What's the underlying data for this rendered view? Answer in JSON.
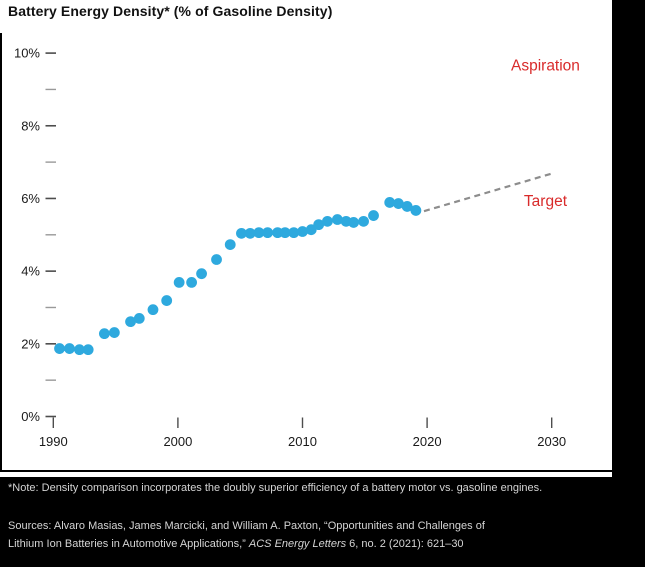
{
  "title": "Battery Energy Density* (% of Gasoline Density)",
  "colors": {
    "dot_blue": "#2ea9de",
    "label_red": "#d92b2b",
    "dash_gray": "#8d8d8d",
    "tick_major": "#4d4d4d",
    "tick_minor": "#999999",
    "card_white": "#ffffff",
    "band_black": "#000000"
  },
  "footnotes": {
    "note": "*Note: Density comparison incorporates the doubly superior efficiency of a battery motor vs. gasoline engines.",
    "source_line1": "Sources: Alvaro Masias, James Marcicki, and William A. Paxton, “Opportunities and Challenges of",
    "source_line2_prefix": "Lithium Ion Batteries in Automotive Applications,” ",
    "source_journal_italic": "ACS Energy Letters",
    "source_line2_suffix": " 6, no. 2 (2021): 621–30"
  },
  "chart_data": {
    "type": "scatter",
    "title": "Battery Energy Density* (% of Gasoline Density)",
    "xlabel": "",
    "ylabel": "",
    "xlim": [
      1990,
      2034.5
    ],
    "ylim": [
      0,
      10.5
    ],
    "grid": false,
    "x_ticks": [
      1990,
      2000,
      2010,
      2020,
      2030
    ],
    "x_tick_labels": [
      "1990",
      "2000",
      "2010",
      "2020",
      "2030"
    ],
    "y_major_ticks": [
      0,
      2,
      4,
      6,
      8,
      10
    ],
    "y_major_labels": [
      "0%",
      "2%",
      "4%",
      "6%",
      "8%",
      "10%"
    ],
    "y_minor_ticks": [
      1,
      3,
      5,
      7,
      9
    ],
    "series": [
      {
        "name": "Battery energy density as % of gasoline density",
        "points": [
          [
            1990.5,
            1.87
          ],
          [
            1991.3,
            1.87
          ],
          [
            1992.1,
            1.84
          ],
          [
            1992.8,
            1.84
          ],
          [
            1994.1,
            2.28
          ],
          [
            1994.9,
            2.31
          ],
          [
            1996.2,
            2.61
          ],
          [
            1996.9,
            2.7
          ],
          [
            1998.0,
            2.94
          ],
          [
            1999.1,
            3.19
          ],
          [
            2000.1,
            3.69
          ],
          [
            2001.1,
            3.69
          ],
          [
            2001.9,
            3.93
          ],
          [
            2003.1,
            4.32
          ],
          [
            2004.2,
            4.73
          ],
          [
            2005.1,
            5.04
          ],
          [
            2005.8,
            5.04
          ],
          [
            2006.5,
            5.06
          ],
          [
            2007.2,
            5.06
          ],
          [
            2008.0,
            5.06
          ],
          [
            2008.6,
            5.06
          ],
          [
            2009.3,
            5.06
          ],
          [
            2010.0,
            5.09
          ],
          [
            2010.7,
            5.14
          ],
          [
            2011.3,
            5.28
          ],
          [
            2012.0,
            5.37
          ],
          [
            2012.8,
            5.42
          ],
          [
            2013.5,
            5.37
          ],
          [
            2014.1,
            5.34
          ],
          [
            2014.9,
            5.37
          ],
          [
            2015.7,
            5.53
          ],
          [
            2017.0,
            5.89
          ],
          [
            2017.7,
            5.86
          ],
          [
            2018.4,
            5.78
          ],
          [
            2019.1,
            5.67
          ]
        ]
      }
    ],
    "target_line": {
      "style": "dashed",
      "from": [
        2019.75,
        5.65
      ],
      "to": [
        2030.05,
        6.69
      ]
    },
    "annotations": [
      {
        "text": "Aspiration",
        "x": 2029.5,
        "y": 9.67
      },
      {
        "text": "Target",
        "x": 2029.5,
        "y": 5.95
      }
    ]
  }
}
